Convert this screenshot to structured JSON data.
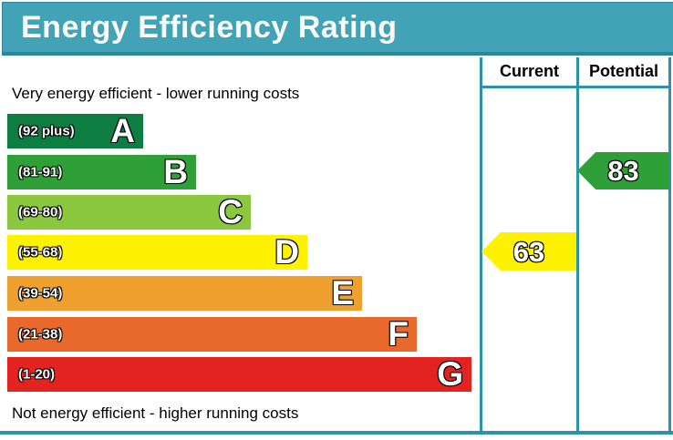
{
  "title": "Energy Efficiency Rating",
  "header": {
    "current": "Current",
    "potential": "Potential"
  },
  "notes": {
    "top": "Very energy efficient - lower running costs",
    "bottom": "Not energy efficient - higher running costs"
  },
  "colors": {
    "banner": "#41a3b5",
    "banner_border": "#2d8598",
    "table_line": "#2d93a8"
  },
  "chart_data": {
    "type": "bar",
    "title": "Energy Efficiency Rating",
    "orientation": "horizontal",
    "bands": [
      {
        "letter": "A",
        "range": "(92 plus)",
        "score_min": 92,
        "score_max": 100,
        "color": "#0e7d41"
      },
      {
        "letter": "B",
        "range": "(81-91)",
        "score_min": 81,
        "score_max": 91,
        "color": "#2fa037"
      },
      {
        "letter": "C",
        "range": "(69-80)",
        "score_min": 69,
        "score_max": 80,
        "color": "#8cc83f"
      },
      {
        "letter": "D",
        "range": "(55-68)",
        "score_min": 55,
        "score_max": 68,
        "color": "#fff200"
      },
      {
        "letter": "E",
        "range": "(39-54)",
        "score_min": 39,
        "score_max": 54,
        "color": "#f0a02e"
      },
      {
        "letter": "F",
        "range": "(21-38)",
        "score_min": 21,
        "score_max": 38,
        "color": "#e9692c"
      },
      {
        "letter": "G",
        "range": "(1-20)",
        "score_min": 1,
        "score_max": 20,
        "color": "#e2231f"
      }
    ],
    "current": {
      "value": 63,
      "band": "D",
      "color": "#fff200"
    },
    "potential": {
      "value": 83,
      "band": "B",
      "color": "#2fa037"
    }
  }
}
